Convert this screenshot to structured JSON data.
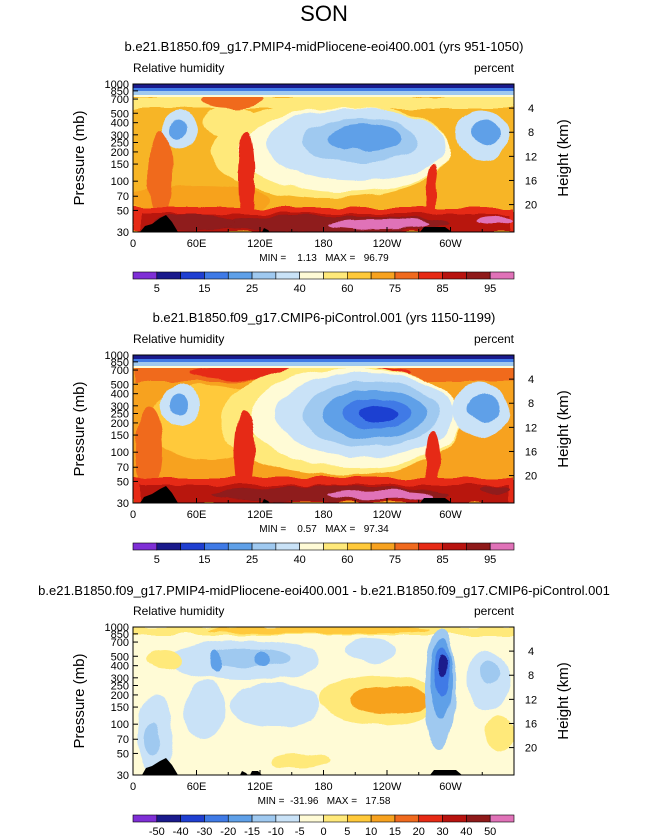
{
  "season": "SON",
  "chart_data": [
    {
      "type": "heatmap",
      "title": "b.e21.B1850.f09_g17.PMIP4-midPliocene-eoi400.001 (yrs 951-1050)",
      "variable": "Relative humidity",
      "units": "percent",
      "xlabel": "",
      "ylabel": "Pressure (mb)",
      "ylabel_right": "Height (km)",
      "x_ticks": [
        "0",
        "60E",
        "120E",
        "180",
        "120W",
        "60W"
      ],
      "y_ticks": [
        "1000",
        "850",
        "700",
        "500",
        "400",
        "300",
        "250",
        "200",
        "150",
        "100",
        "70",
        "50",
        "30"
      ],
      "height_ticks": [
        "4",
        "8",
        "12",
        "16",
        "20"
      ],
      "stats": "MIN =    1.13   MAX =   96.79",
      "min": 1.13,
      "max": 96.79,
      "colorbar_labels": [
        "5",
        "15",
        "25",
        "40",
        "60",
        "75",
        "85",
        "95"
      ],
      "colorbar_colors": [
        "#7f2fd6",
        "#1a1a8c",
        "#1f3fd1",
        "#3f7ae6",
        "#5fa0e8",
        "#9fc9f0",
        "#c9e2f7",
        "#fffbd6",
        "#ffe97a",
        "#ffc93a",
        "#f7a21f",
        "#f06a1e",
        "#e62a15",
        "#b8130f",
        "#8f1a1a",
        "#e072b8"
      ]
    },
    {
      "type": "heatmap",
      "title": "b.e21.B1850.f09_g17.CMIP6-piControl.001 (yrs 1150-1199)",
      "variable": "Relative humidity",
      "units": "percent",
      "xlabel": "",
      "ylabel": "Pressure (mb)",
      "ylabel_right": "Height (km)",
      "x_ticks": [
        "0",
        "60E",
        "120E",
        "180",
        "120W",
        "60W"
      ],
      "y_ticks": [
        "1000",
        "850",
        "700",
        "500",
        "400",
        "300",
        "250",
        "200",
        "150",
        "100",
        "70",
        "50",
        "30"
      ],
      "height_ticks": [
        "4",
        "8",
        "12",
        "16",
        "20"
      ],
      "stats": "MIN =    0.57   MAX =   97.34",
      "min": 0.57,
      "max": 97.34,
      "colorbar_labels": [
        "5",
        "15",
        "25",
        "40",
        "60",
        "75",
        "85",
        "95"
      ],
      "colorbar_colors": [
        "#7f2fd6",
        "#1a1a8c",
        "#1f3fd1",
        "#3f7ae6",
        "#5fa0e8",
        "#9fc9f0",
        "#c9e2f7",
        "#fffbd6",
        "#ffe97a",
        "#ffc93a",
        "#f7a21f",
        "#f06a1e",
        "#e62a15",
        "#b8130f",
        "#8f1a1a",
        "#e072b8"
      ]
    },
    {
      "type": "heatmap",
      "title": "b.e21.B1850.f09_g17.PMIP4-midPliocene-eoi400.001 - b.e21.B1850.f09_g17.CMIP6-piControl.001",
      "variable": "Relative humidity",
      "units": "percent",
      "xlabel": "",
      "ylabel": "Pressure (mb)",
      "ylabel_right": "Height (km)",
      "x_ticks": [
        "0",
        "60E",
        "120E",
        "180",
        "120W",
        "60W"
      ],
      "y_ticks": [
        "1000",
        "850",
        "700",
        "500",
        "400",
        "300",
        "250",
        "200",
        "150",
        "100",
        "70",
        "50",
        "30"
      ],
      "height_ticks": [
        "4",
        "8",
        "12",
        "16",
        "20"
      ],
      "stats": "MIN =  -31.96   MAX =   17.58",
      "min": -31.96,
      "max": 17.58,
      "colorbar_labels": [
        "-50",
        "-40",
        "-30",
        "-20",
        "-15",
        "-10",
        "-5",
        "0",
        "5",
        "10",
        "15",
        "20",
        "30",
        "40",
        "50"
      ],
      "colorbar_colors": [
        "#7f2fd6",
        "#1a1a8c",
        "#1f3fd1",
        "#3f7ae6",
        "#5fa0e8",
        "#9fc9f0",
        "#c9e2f7",
        "#fffbd6",
        "#ffe97a",
        "#ffc93a",
        "#f7a21f",
        "#f06a1e",
        "#e62a15",
        "#b8130f",
        "#8f1a1a",
        "#e072b8"
      ]
    }
  ]
}
